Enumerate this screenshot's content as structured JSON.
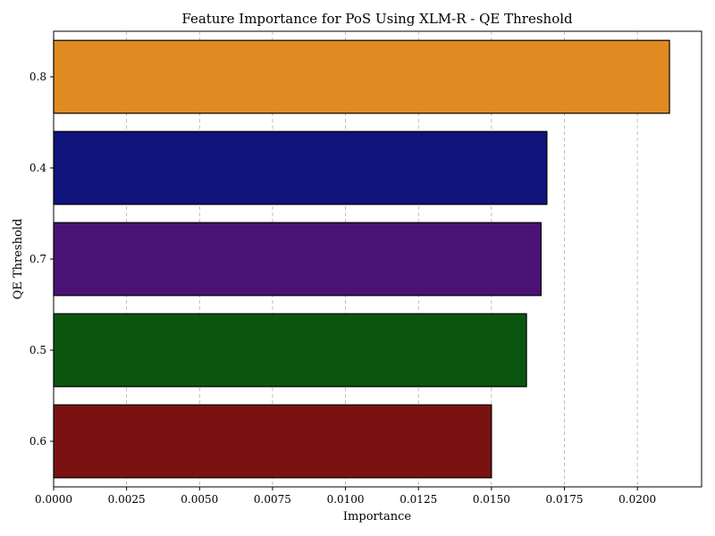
{
  "chart_data": {
    "type": "bar",
    "orientation": "horizontal",
    "title": "Feature Importance for PoS Using XLM-R - QE Threshold",
    "xlabel": "Importance",
    "ylabel": "QE Threshold",
    "categories": [
      "0.8",
      "0.4",
      "0.7",
      "0.5",
      "0.6"
    ],
    "values": [
      0.0211,
      0.0169,
      0.0167,
      0.0162,
      0.015
    ],
    "colors": [
      "#e08a22",
      "#10137a",
      "#4a1275",
      "#0b560f",
      "#7a1212"
    ],
    "xlim": [
      0,
      0.0222
    ],
    "xticks": [
      0.0,
      0.0025,
      0.005,
      0.0075,
      0.01,
      0.0125,
      0.015,
      0.0175,
      0.02
    ],
    "xtick_labels": [
      "0.0000",
      "0.0025",
      "0.0050",
      "0.0075",
      "0.0100",
      "0.0125",
      "0.0150",
      "0.0175",
      "0.0200"
    ],
    "grid": "x-axis dashed",
    "legend": "none"
  }
}
